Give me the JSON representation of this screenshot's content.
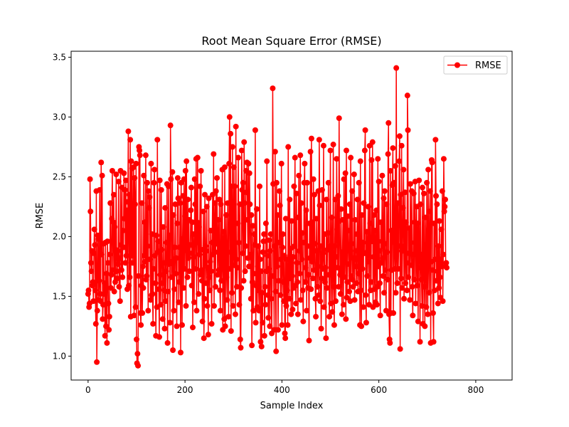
{
  "chart_data": {
    "type": "line",
    "title": "Root Mean Square Error (RMSE)",
    "xlabel": "Sample Index",
    "ylabel": "RMSE",
    "xlim": [
      -35,
      875
    ],
    "ylim": [
      0.8,
      3.55
    ],
    "xticks": [
      0,
      200,
      400,
      600,
      800
    ],
    "yticks": [
      1.0,
      1.5,
      2.0,
      2.5,
      3.0,
      3.5
    ],
    "xtick_labels": [
      "0",
      "200",
      "400",
      "600",
      "800"
    ],
    "ytick_labels": [
      "1.0",
      "1.5",
      "2.0",
      "2.5",
      "3.0",
      "3.5"
    ],
    "grid": false,
    "legend_position": "top-right",
    "series": [
      {
        "name": "RMSE",
        "color": "#ff0000",
        "marker": "circle",
        "x_start": 0,
        "x_step": 1,
        "values": [
          1.52,
          1.55,
          1.41,
          1.44,
          2.48,
          2.21,
          1.78,
          1.71,
          1.88,
          1.59,
          1.62,
          1.46,
          1.86,
          2.06,
          1.93,
          1.55,
          1.27,
          2.38,
          0.95,
          1.38,
          2.01,
          1.98,
          1.47,
          1.63,
          2.39,
          1.52,
          1.46,
          2.62,
          1.85,
          2.51,
          1.31,
          1.43,
          1.94,
          1.52,
          1.61,
          1.17,
          1.95,
          1.25,
          1.69,
          1.11,
          1.96,
          1.78,
          1.44,
          1.22,
          1.33,
          1.85,
          2.28,
          1.57,
          1.68,
          2.15,
          2.55,
          1.72,
          2.12,
          2.35,
          1.54,
          2.08,
          1.62,
          1.89,
          2.52,
          1.71,
          1.65,
          1.88,
          1.77,
          2.46,
          1.58,
          1.82,
          1.46,
          2.55,
          1.93,
          1.72,
          2.41,
          1.66,
          2.05,
          1.91,
          2.53,
          2.15,
          2.39,
          1.78,
          2.47,
          1.84,
          2.22,
          1.56,
          2.29,
          2.88,
          1.59,
          2.35,
          1.66,
          2.81,
          1.33,
          2.63,
          1.84,
          2.57,
          1.78,
          1.91,
          2.58,
          1.34,
          2.49,
          2.27,
          1.41,
          2.61,
          1.14,
          0.94,
          1.02,
          0.92,
          1.67,
          2.75,
          2.72,
          2.68,
          1.36,
          1.26,
          1.59,
          2.28,
          1.36,
          1.75,
          1.57,
          2.51,
          1.84,
          2.12,
          1.79,
          2.68,
          1.64,
          1.67,
          2.45,
          1.92,
          1.38,
          2.38,
          2.24,
          2.33,
          1.81,
          1.47,
          2.61,
          1.51,
          2.02,
          1.52,
          1.27,
          1.73,
          2.45,
          2.56,
          1.84,
          1.61,
          1.17,
          2.01,
          1.41,
          2.81,
          1.87,
          1.96,
          1.56,
          1.16,
          2.47,
          1.68,
          1.43,
          2.39,
          1.89,
          1.61,
          1.31,
          2.08,
          1.78,
          1.55,
          1.23,
          2.24,
          1.46,
          1.71,
          1.95,
          2.44,
          1.11,
          1.54,
          2.42,
          1.77,
          2.01,
          1.28,
          2.93,
          2.48,
          1.66,
          1.79,
          2.54,
          1.05,
          2.18,
          1.38,
          1.56,
          1.91,
          2.27,
          1.69,
          1.82,
          1.25,
          2.11,
          2.49,
          2.32,
          1.45,
          1.62,
          1.91,
          2.28,
          1.03,
          2.45,
          1.81,
          1.26,
          1.98,
          2.34,
          1.57,
          2.48,
          1.73,
          2.17,
          2.55,
          1.42,
          2.63,
          1.88,
          1.66,
          2.31,
          1.82,
          2.14,
          1.71,
          1.86,
          1.93,
          2.22,
          2.41,
          1.59,
          2.12,
          1.24,
          2.02,
          1.83,
          1.45,
          2.48,
          2.27,
          1.73,
          2.65,
          1.38,
          2.12,
          2.66,
          1.95,
          1.52,
          2.08,
          1.85,
          2.42,
          1.68,
          2.55,
          1.72,
          1.63,
          1.29,
          1.89,
          2.21,
          1.15,
          1.48,
          2.35,
          1.92,
          1.61,
          1.88,
          2.25,
          1.42,
          1.74,
          1.18,
          2.32,
          1.66,
          1.55,
          1.79,
          2.05,
          1.71,
          1.27,
          1.95,
          2.35,
          1.85,
          2.69,
          1.42,
          2.06,
          2.28,
          1.58,
          2.38,
          1.94,
          2.49,
          1.68,
          1.87,
          2.14,
          1.72,
          2.31,
          1.55,
          1.38,
          2.27,
          1.63,
          1.82,
          2.56,
          1.22,
          1.95,
          2.04,
          1.31,
          2.58,
          1.25,
          1.73,
          2.18,
          1.66,
          1.47,
          2.28,
          1.87,
          1.33,
          2.61,
          3.0,
          1.73,
          2.86,
          1.21,
          2.42,
          1.53,
          2.75,
          1.42,
          1.98,
          2.58,
          1.76,
          2.42,
          1.35,
          2.92,
          1.81,
          1.58,
          1.74,
          2.11,
          2.66,
          1.95,
          1.43,
          2.27,
          1.14,
          1.07,
          1.57,
          2.72,
          2.39,
          1.86,
          2.45,
          1.63,
          2.79,
          2.28,
          1.71,
          1.92,
          2.55,
          2.37,
          2.62,
          2.14,
          1.82,
          2.61,
          1.75,
          2.53,
          2.27,
          1.85,
          1.48,
          2.18,
          1.09,
          1.62,
          2.09,
          1.38,
          1.69,
          2.02,
          1.93,
          2.89,
          1.28,
          1.59,
          2.23,
          1.41,
          1.75,
          1.92,
          1.55,
          1.38,
          2.42,
          1.81,
          1.12,
          1.71,
          1.08,
          1.53,
          1.28,
          1.87,
          1.96,
          2.02,
          1.17,
          1.58,
          1.43,
          2.11,
          1.71,
          2.63,
          1.84,
          1.51,
          1.32,
          1.73,
          1.97,
          1.25,
          1.88,
          2.02,
          1.48,
          1.19,
          1.67,
          3.24,
          2.44,
          1.67,
          1.22,
          1.92,
          2.71,
          1.54,
          1.04,
          2.45,
          1.75,
          2.18,
          1.22,
          1.63,
          1.95,
          2.38,
          2.26,
          1.51,
          1.81,
          2.61,
          1.26,
          1.91,
          2.02,
          1.62,
          1.46,
          1.84,
          1.19,
          1.15,
          2.15,
          1.42,
          1.81,
          1.55,
          1.26,
          2.75,
          1.73,
          1.48,
          2.31,
          1.65,
          1.9,
          1.35,
          2.13,
          1.67,
          1.39,
          1.83,
          1.57,
          2.42,
          1.92,
          2.66,
          1.59,
          1.44,
          2.36,
          1.78,
          1.62,
          1.35,
          2.16,
          2.51,
          1.88,
          1.69,
          2.68,
          1.47,
          2.28,
          1.81,
          2.03,
          1.55,
          1.29,
          1.95,
          2.45,
          2.61,
          1.62,
          1.74,
          2.22,
          1.38,
          2.45,
          1.92,
          1.57,
          1.68,
          1.13,
          2.11,
          1.82,
          2.71,
          1.56,
          2.82,
          1.79,
          2.12,
          1.65,
          2.48,
          1.72,
          2.35,
          1.94,
          1.48,
          1.33,
          2.15,
          1.88,
          1.58,
          1.75,
          2.38,
          1.51,
          2.81,
          2.26,
          1.46,
          1.92,
          1.23,
          1.65,
          2.39,
          1.73,
          1.86,
          2.76,
          1.41,
          2.02,
          1.62,
          1.74,
          1.15,
          2.31,
          1.57,
          1.89,
          2.03,
          2.45,
          1.68,
          1.33,
          1.92,
          2.72,
          1.44,
          1.81,
          2.16,
          1.37,
          1.71,
          2.77,
          1.58,
          1.26,
          1.92,
          2.31,
          1.46,
          1.83,
          2.65,
          2.06,
          1.74,
          2.34,
          1.58,
          2.99,
          2.13,
          1.68,
          1.52,
          2.23,
          1.71,
          1.35,
          1.87,
          2.14,
          1.43,
          2.48,
          1.66,
          1.91,
          2.53,
          1.31,
          2.72,
          1.49,
          1.62,
          2.17,
          2.05,
          1.77,
          1.54,
          2.27,
          1.46,
          2.66,
          1.67,
          1.94,
          2.38,
          1.64,
          1.58,
          1.82,
          2.52,
          1.47,
          2.14,
          1.88,
          1.75,
          1.61,
          2.02,
          2.31,
          1.54,
          1.69,
          2.45,
          1.87,
          1.26,
          2.63,
          1.55,
          1.25,
          2.18,
          1.73,
          1.95,
          1.41,
          2.28,
          1.86,
          2.72,
          2.89,
          1.51,
          1.28,
          2.04,
          1.67,
          1.88,
          2.25,
          1.79,
          1.43,
          2.76,
          2.11,
          1.55,
          1.62,
          2.64,
          1.96,
          2.79,
          1.41,
          1.83,
          2.18,
          1.56,
          2.05,
          1.45,
          1.93,
          2.22,
          1.43,
          1.58,
          2.65,
          1.75,
          2.46,
          1.88,
          1.61,
          1.34,
          2.12,
          1.78,
          1.96,
          2.51,
          1.82,
          1.67,
          2.32,
          1.53,
          2.38,
          1.94,
          1.72,
          1.38,
          2.27,
          1.87,
          1.64,
          2.69,
          2.95,
          1.35,
          1.14,
          1.11,
          2.55,
          1.36,
          2.05,
          1.72,
          2.43,
          2.74,
          1.36,
          2.45,
          1.95,
          1.73,
          2.59,
          1.53,
          3.41,
          1.88,
          1.61,
          2.28,
          1.73,
          1.92,
          2.63,
          2.84,
          1.06,
          2.35,
          1.65,
          2.76,
          1.57,
          1.88,
          2.24,
          2.56,
          1.48,
          1.92,
          2.37,
          1.61,
          2.12,
          1.78,
          1.55,
          3.18,
          2.89,
          1.66,
          1.86,
          2.07,
          1.47,
          2.44,
          1.95,
          1.76,
          2.38,
          1.58,
          1.34,
          1.85,
          2.36,
          1.64,
          2.12,
          2.46,
          1.44,
          1.88,
          2.25,
          1.59,
          2.11,
          1.29,
          1.95,
          2.47,
          1.74,
          1.12,
          2.27,
          1.85,
          1.64,
          1.42,
          2.41,
          1.27,
          1.81,
          2.36,
          1.58,
          1.25,
          2.16,
          1.93,
          1.41,
          2.45,
          1.74,
          1.35,
          2.56,
          1.88,
          1.53,
          2.21,
          2.38,
          1.11,
          1.79,
          2.64,
          2.62,
          1.72,
          1.36,
          1.12,
          2.11,
          1.55,
          1.81,
          2.81,
          2.34,
          1.63,
          2.27,
          1.71,
          1.44,
          1.92,
          1.57,
          2.13,
          1.66,
          1.49,
          1.81,
          2.06,
          1.75,
          2.38,
          1.46,
          1.85,
          2.65,
          2.21,
          2.25,
          2.31,
          1.75,
          1.78,
          1.74
        ]
      }
    ]
  }
}
